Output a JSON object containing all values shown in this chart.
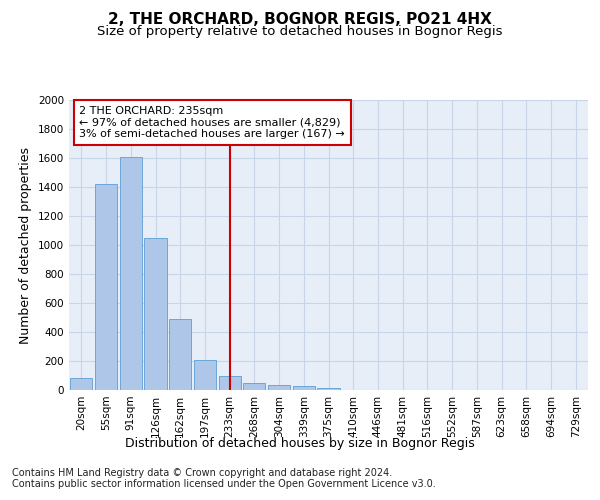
{
  "title": "2, THE ORCHARD, BOGNOR REGIS, PO21 4HX",
  "subtitle": "Size of property relative to detached houses in Bognor Regis",
  "xlabel": "Distribution of detached houses by size in Bognor Regis",
  "ylabel": "Number of detached properties",
  "bin_labels": [
    "20sqm",
    "55sqm",
    "91sqm",
    "126sqm",
    "162sqm",
    "197sqm",
    "233sqm",
    "268sqm",
    "304sqm",
    "339sqm",
    "375sqm",
    "410sqm",
    "446sqm",
    "481sqm",
    "516sqm",
    "552sqm",
    "587sqm",
    "623sqm",
    "658sqm",
    "694sqm",
    "729sqm"
  ],
  "bar_values": [
    80,
    1420,
    1610,
    1050,
    490,
    210,
    100,
    50,
    35,
    25,
    15,
    0,
    0,
    0,
    0,
    0,
    0,
    0,
    0,
    0,
    0
  ],
  "bar_color": "#aec6e8",
  "bar_edge_color": "#5a9fd4",
  "vline_x": 6,
  "vline_color": "#cc0000",
  "annotation_text": "2 THE ORCHARD: 235sqm\n← 97% of detached houses are smaller (4,829)\n3% of semi-detached houses are larger (167) →",
  "annotation_box_color": "#ffffff",
  "annotation_box_edge": "#cc0000",
  "footer_text": "Contains HM Land Registry data © Crown copyright and database right 2024.\nContains public sector information licensed under the Open Government Licence v3.0.",
  "ylim": [
    0,
    2000
  ],
  "yticks": [
    0,
    200,
    400,
    600,
    800,
    1000,
    1200,
    1400,
    1600,
    1800,
    2000
  ],
  "background_color": "#ffffff",
  "plot_bg_color": "#e8eef8",
  "grid_color": "#c8d4e8",
  "title_fontsize": 11,
  "subtitle_fontsize": 9.5,
  "axis_label_fontsize": 9,
  "tick_fontsize": 7.5,
  "footer_fontsize": 7,
  "annotation_fontsize": 8
}
